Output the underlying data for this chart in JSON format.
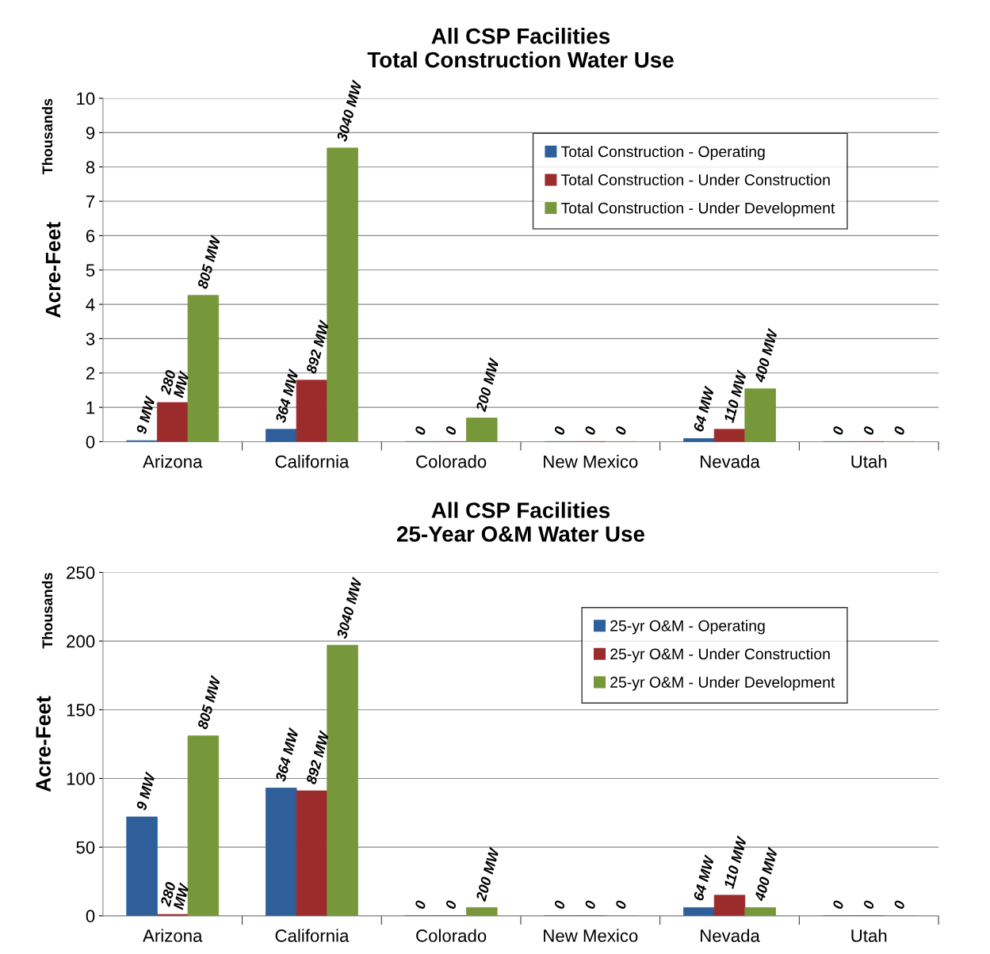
{
  "chart_data": [
    {
      "type": "bar",
      "title": "All CSP Facilities\nTotal Construction Water Use",
      "ylabel": "Acre-Feet",
      "annotations": [
        "Thousands",
        "9 MW",
        "280\nMW",
        "805 MW",
        "364 MW",
        "892 MW",
        "3040 MW",
        "0",
        "0",
        "200 MW",
        "0",
        "0",
        "0",
        "64 MW",
        "110 MW",
        "400 MW",
        "0",
        "0",
        "0"
      ],
      "categories": [
        "Arizona",
        "California",
        "Colorado",
        "New Mexico",
        "Nevada",
        "Utah"
      ],
      "series": [
        {
          "name": "Total Construction - Operating",
          "color": "#2e5f9a",
          "values": [
            0.03,
            0.36,
            0,
            0,
            0.09,
            0
          ]
        },
        {
          "name": "Total Construction - Under Construction",
          "color": "#9c2b2b",
          "values": [
            1.14,
            1.79,
            0,
            0,
            0.36,
            0
          ]
        },
        {
          "name": "Total Construction - Under Development",
          "color": "#77983a",
          "values": [
            4.26,
            8.55,
            0.69,
            0,
            1.54,
            0
          ]
        }
      ],
      "ylim": [
        0,
        10
      ],
      "yticks": [
        0,
        1,
        2,
        3,
        4,
        5,
        6,
        7,
        8,
        9,
        10
      ],
      "grid": "y",
      "legend": "top right"
    },
    {
      "type": "bar",
      "title": "All CSP Facilities\n25-Year O&M Water Use",
      "ylabel": "Acre-Feet",
      "annotations": [
        "Thousands",
        "9 MW",
        "280\nMW",
        "805 MW",
        "364 MW",
        "892 MW",
        "3040 MW",
        "0",
        "0",
        "200 MW",
        "0",
        "0",
        "0",
        "64 MW",
        "110 MW",
        "400 MW",
        "0",
        "0",
        "0"
      ],
      "categories": [
        "Arizona",
        "California",
        "Colorado",
        "New Mexico",
        "Nevada",
        "Utah"
      ],
      "series": [
        {
          "name": "25-yr O&M - Operating",
          "color": "#2e5f9a",
          "values": [
            72,
            93,
            0,
            0,
            6,
            0
          ]
        },
        {
          "name": "25-yr O&M - Under Construction",
          "color": "#9c2b2b",
          "values": [
            1,
            91,
            0,
            0,
            15,
            0
          ]
        },
        {
          "name": "25-yr O&M - Under Development",
          "color": "#77983a",
          "values": [
            131,
            197,
            6,
            0,
            6,
            0
          ]
        }
      ],
      "ylim": [
        0,
        250
      ],
      "yticks": [
        0,
        50,
        100,
        150,
        200,
        250
      ],
      "grid": "y",
      "legend": "top right"
    }
  ]
}
